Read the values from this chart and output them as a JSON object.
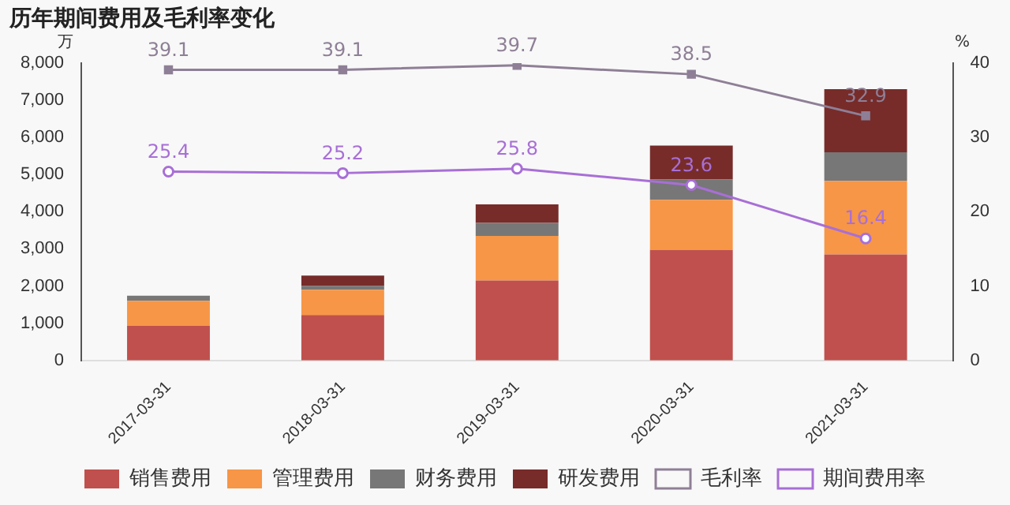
{
  "chart_data": {
    "type": "bar",
    "title": "历年期间费用及毛利率变化",
    "ylabel": "万",
    "y2label": "%",
    "categories": [
      "2017-03-31",
      "2018-03-31",
      "2019-03-31",
      "2020-03-31",
      "2021-03-31"
    ],
    "stacked": true,
    "grid": false,
    "legend": "bottom",
    "ylim": [
      0,
      8000
    ],
    "yticks": [
      0,
      {
        "value": 1000,
        "label": "1,000"
      },
      {
        "value": 2000,
        "label": "2,000"
      },
      {
        "value": 3000,
        "label": "3,000"
      },
      {
        "value": 4000,
        "label": "4,000"
      },
      {
        "value": 5000,
        "label": "5,000"
      },
      {
        "value": 6000,
        "label": "6,000"
      },
      {
        "value": 7000,
        "label": "7,000"
      },
      {
        "value": 8000,
        "label": "8,000"
      }
    ],
    "y2lim": [
      0,
      40
    ],
    "y2ticks": [
      0,
      10,
      20,
      30,
      40
    ],
    "series": [
      {
        "name": "销售费用",
        "color": "#c0504d",
        "values": [
          930,
          1220,
          2150,
          2970,
          2850
        ]
      },
      {
        "name": "管理费用",
        "color": "#f79646",
        "values": [
          670,
          680,
          1200,
          1350,
          1980
        ]
      },
      {
        "name": "财务费用",
        "color": "#777777",
        "values": [
          140,
          100,
          350,
          550,
          770
        ]
      },
      {
        "name": "研发费用",
        "color": "#772c2a",
        "values": [
          0,
          280,
          500,
          910,
          1700
        ]
      },
      {
        "name": "毛利率",
        "type": "line",
        "axis": "y2",
        "marker": "square",
        "color": "#8e7f96",
        "values": [
          39.1,
          39.1,
          39.7,
          38.5,
          32.9
        ],
        "value_labels": [
          "39.1",
          "39.1",
          "39.7",
          "38.5",
          "32.9"
        ]
      },
      {
        "name": "期间费用率",
        "type": "line",
        "axis": "y2",
        "marker": "circle",
        "color": "#a86fd6",
        "values": [
          25.4,
          25.2,
          25.8,
          23.6,
          16.4
        ],
        "value_labels": [
          "25.4",
          "25.2",
          "25.8",
          "23.6",
          "16.4"
        ]
      }
    ]
  }
}
